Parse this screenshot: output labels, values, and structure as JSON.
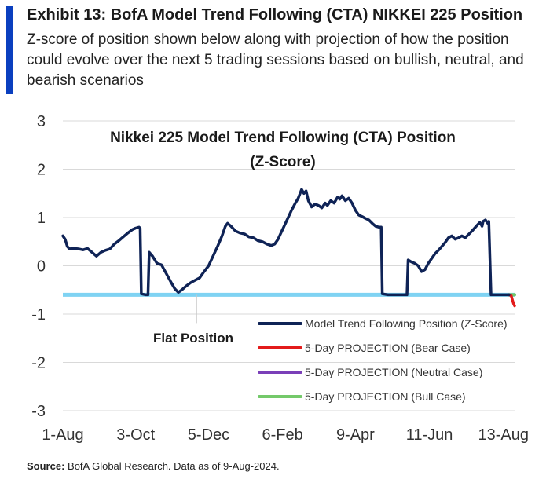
{
  "header": {
    "title": "Exhibit 13: BofA Model Trend Following (CTA) NIKKEI 225 Position",
    "subtitle": "Z-score of position shown below along with projection of how the position could evolve over the next 5 trading sessions based on bullish, neutral, and bearish scenarios"
  },
  "chart_data": {
    "type": "line",
    "title_line1": "Nikkei 225 Model Trend Following (CTA) Position",
    "title_line2": "(Z-Score)",
    "ylim": [
      -3,
      3
    ],
    "yticks": [
      "3",
      "2",
      "1",
      "0",
      "-1",
      "-2",
      "-3"
    ],
    "xticks": [
      "1-Aug",
      "3-Oct",
      "5-Dec",
      "6-Feb",
      "9-Apr",
      "11-Jun",
      "13-Aug"
    ],
    "grid": "horizontal",
    "flat_position": {
      "label": "Flat Position",
      "value": -0.6,
      "color": "#7fd3f3"
    },
    "colors": {
      "main": "#0f2356",
      "bear": "#e31b1b",
      "neutral": "#7a3fb8",
      "bull": "#74c96a"
    },
    "legend_position": "bottom-right",
    "series": [
      {
        "name": "Model Trend Following Position (Z-Score)",
        "key": "main",
        "points": [
          [
            0,
            0.62
          ],
          [
            2,
            0.55
          ],
          [
            4,
            0.4
          ],
          [
            6,
            0.35
          ],
          [
            10,
            0.36
          ],
          [
            14,
            0.35
          ],
          [
            18,
            0.33
          ],
          [
            22,
            0.36
          ],
          [
            26,
            0.28
          ],
          [
            30,
            0.2
          ],
          [
            34,
            0.28
          ],
          [
            38,
            0.32
          ],
          [
            42,
            0.35
          ],
          [
            46,
            0.45
          ],
          [
            50,
            0.52
          ],
          [
            54,
            0.6
          ],
          [
            58,
            0.68
          ],
          [
            62,
            0.75
          ],
          [
            65,
            0.78
          ],
          [
            68,
            0.8
          ],
          [
            69,
            0.78
          ],
          [
            70,
            -0.58
          ],
          [
            74,
            -0.6
          ],
          [
            76,
            -0.6
          ],
          [
            77,
            0.28
          ],
          [
            80,
            0.2
          ],
          [
            84,
            0.05
          ],
          [
            88,
            0.02
          ],
          [
            92,
            -0.15
          ],
          [
            96,
            -0.32
          ],
          [
            100,
            -0.48
          ],
          [
            103,
            -0.55
          ],
          [
            106,
            -0.5
          ],
          [
            110,
            -0.42
          ],
          [
            114,
            -0.35
          ],
          [
            118,
            -0.3
          ],
          [
            122,
            -0.25
          ],
          [
            126,
            -0.12
          ],
          [
            130,
            0.0
          ],
          [
            134,
            0.2
          ],
          [
            138,
            0.4
          ],
          [
            142,
            0.62
          ],
          [
            145,
            0.82
          ],
          [
            147,
            0.88
          ],
          [
            150,
            0.82
          ],
          [
            154,
            0.72
          ],
          [
            158,
            0.68
          ],
          [
            162,
            0.66
          ],
          [
            166,
            0.6
          ],
          [
            170,
            0.58
          ],
          [
            174,
            0.52
          ],
          [
            178,
            0.5
          ],
          [
            182,
            0.45
          ],
          [
            186,
            0.42
          ],
          [
            189,
            0.45
          ],
          [
            192,
            0.55
          ],
          [
            195,
            0.7
          ],
          [
            198,
            0.85
          ],
          [
            201,
            1.0
          ],
          [
            204,
            1.15
          ],
          [
            207,
            1.28
          ],
          [
            210,
            1.4
          ],
          [
            212,
            1.52
          ],
          [
            213,
            1.58
          ],
          [
            215,
            1.5
          ],
          [
            217,
            1.55
          ],
          [
            219,
            1.35
          ],
          [
            222,
            1.22
          ],
          [
            225,
            1.28
          ],
          [
            228,
            1.25
          ],
          [
            231,
            1.2
          ],
          [
            234,
            1.3
          ],
          [
            236,
            1.25
          ],
          [
            239,
            1.35
          ],
          [
            242,
            1.3
          ],
          [
            245,
            1.42
          ],
          [
            247,
            1.38
          ],
          [
            249,
            1.45
          ],
          [
            252,
            1.35
          ],
          [
            255,
            1.4
          ],
          [
            258,
            1.3
          ],
          [
            261,
            1.15
          ],
          [
            264,
            1.05
          ],
          [
            267,
            1.02
          ],
          [
            270,
            0.98
          ],
          [
            273,
            0.95
          ],
          [
            276,
            0.88
          ],
          [
            279,
            0.82
          ],
          [
            282,
            0.8
          ],
          [
            284,
            0.8
          ],
          [
            285,
            -0.58
          ],
          [
            290,
            -0.6
          ],
          [
            295,
            -0.6
          ],
          [
            300,
            -0.6
          ],
          [
            305,
            -0.6
          ],
          [
            307,
            -0.6
          ],
          [
            308,
            0.12
          ],
          [
            311,
            0.08
          ],
          [
            314,
            0.05
          ],
          [
            317,
            0.0
          ],
          [
            320,
            -0.12
          ],
          [
            323,
            -0.08
          ],
          [
            326,
            0.05
          ],
          [
            329,
            0.15
          ],
          [
            332,
            0.25
          ],
          [
            335,
            0.32
          ],
          [
            338,
            0.4
          ],
          [
            341,
            0.48
          ],
          [
            344,
            0.58
          ],
          [
            347,
            0.62
          ],
          [
            350,
            0.55
          ],
          [
            353,
            0.58
          ],
          [
            356,
            0.62
          ],
          [
            359,
            0.58
          ],
          [
            362,
            0.65
          ],
          [
            365,
            0.72
          ],
          [
            368,
            0.8
          ],
          [
            370,
            0.85
          ],
          [
            372,
            0.9
          ],
          [
            374,
            0.82
          ],
          [
            375,
            0.92
          ],
          [
            377,
            0.95
          ],
          [
            379,
            0.88
          ],
          [
            380,
            0.92
          ],
          [
            382,
            -0.6
          ],
          [
            388,
            -0.6
          ],
          [
            393,
            -0.6
          ],
          [
            398,
            -0.6
          ]
        ]
      },
      {
        "name": "5-Day PROJECTION (Bear Case)",
        "key": "bear",
        "points": [
          [
            398,
            -0.6
          ],
          [
            400,
            -0.62
          ],
          [
            401,
            -0.7
          ],
          [
            402,
            -0.78
          ],
          [
            403,
            -0.83
          ]
        ]
      },
      {
        "name": "5-Day PROJECTION (Neutral Case)",
        "key": "neutral",
        "points": [
          [
            398,
            -0.6
          ],
          [
            401,
            -0.6
          ],
          [
            403,
            -0.6
          ]
        ]
      },
      {
        "name": "5-Day PROJECTION (Bull Case)",
        "key": "bull",
        "points": [
          [
            398,
            -0.6
          ],
          [
            401,
            -0.6
          ],
          [
            403,
            -0.6
          ]
        ]
      }
    ]
  },
  "footer": {
    "source_label": "Source:",
    "source_text": " BofA Global Research.  Data as of 9-Aug-2024."
  }
}
